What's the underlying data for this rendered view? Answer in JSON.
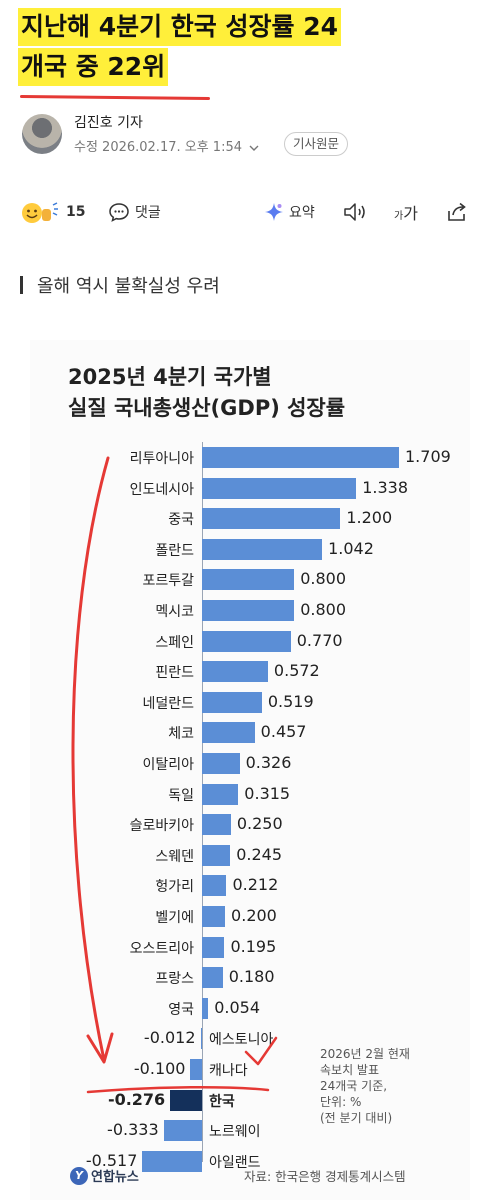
{
  "article": {
    "headline_line1": "지난해 4분기 한국 성장률 24",
    "headline_line2": "개국 중 22위",
    "reporter": "김진호 기자",
    "modified": "수정 2026.02.17. 오후 1:54",
    "original_button": "기사원문",
    "subhead": "올해 역시 불확실성 우려"
  },
  "toolbar": {
    "reactions_count": "15",
    "comment_label": "댓글",
    "summary_label": "요약",
    "font_label_small": "가",
    "font_label_large": "가"
  },
  "icons": [
    "reaction-emoji-icon",
    "comment-icon",
    "ai-summary-icon",
    "speaker-icon",
    "font-size-icon",
    "share-icon",
    "chevron-down-icon"
  ],
  "colors": {
    "highlight": "#ffef3a",
    "bar": "#5b8ed6",
    "bar_highlight": "#14305b",
    "annotation": "#e53935"
  },
  "chart_data": {
    "type": "bar",
    "orientation": "horizontal",
    "title_line1": "2025년 4분기 국가별",
    "title_line2": "실질 국내총생산(GDP) 성장률",
    "categories": [
      "리투아니아",
      "인도네시아",
      "중국",
      "폴란드",
      "포르투갈",
      "멕시코",
      "스페인",
      "핀란드",
      "네덜란드",
      "체코",
      "이탈리아",
      "독일",
      "슬로바키아",
      "스웨덴",
      "헝가리",
      "벨기에",
      "오스트리아",
      "프랑스",
      "영국",
      "에스토니아",
      "캐나다",
      "한국",
      "노르웨이",
      "아일랜드"
    ],
    "values": [
      1.709,
      1.338,
      1.2,
      1.042,
      0.8,
      0.8,
      0.77,
      0.572,
      0.519,
      0.457,
      0.326,
      0.315,
      0.25,
      0.245,
      0.212,
      0.2,
      0.195,
      0.18,
      0.054,
      -0.012,
      -0.1,
      -0.276,
      -0.333,
      -0.517
    ],
    "value_labels": [
      "1.709",
      "1.338",
      "1.200",
      "1.042",
      "0.800",
      "0.800",
      "0.770",
      "0.572",
      "0.519",
      "0.457",
      "0.326",
      "0.315",
      "0.250",
      "0.245",
      "0.212",
      "0.200",
      "0.195",
      "0.180",
      "0.054",
      "-0.012",
      "-0.100",
      "-0.276",
      "-0.333",
      "-0.517"
    ],
    "highlight": "한국",
    "note": "2026년 2월 현재\n속보치 발표\n24개국 기준,\n단위: %\n(전 분기 대비)",
    "logo_text": "연합뉴스",
    "source": "자료: 한국은행 경제통계시스템"
  }
}
